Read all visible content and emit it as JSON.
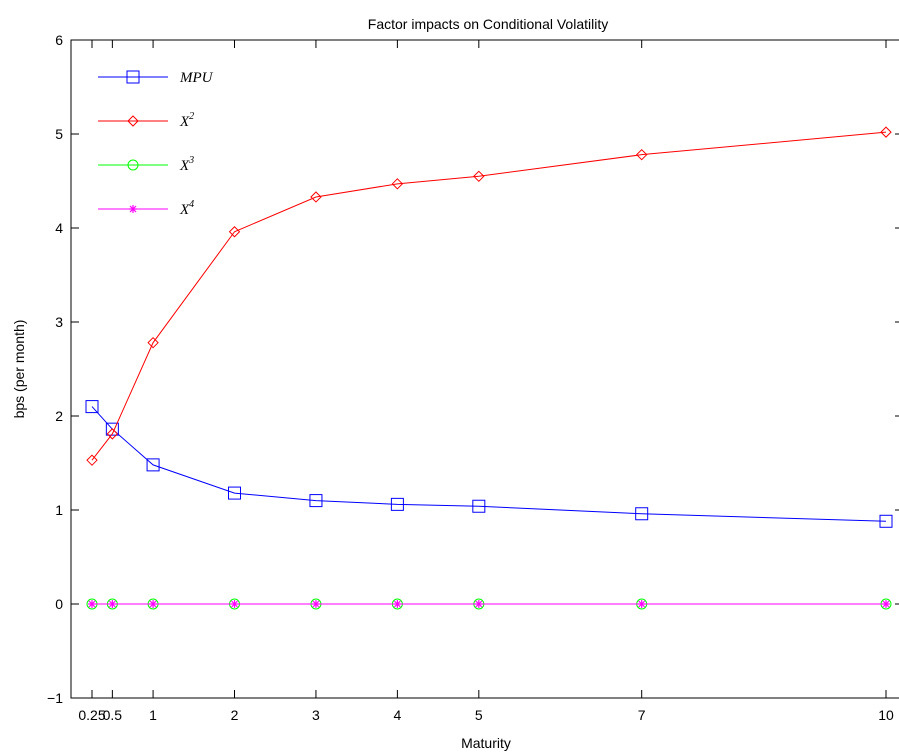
{
  "chart_data": {
    "type": "line",
    "title": "Factor impacts on Conditional Volatility",
    "xlabel": "Maturity",
    "ylabel": "bps (per month)",
    "xlim": [
      0.25,
      10
    ],
    "ylim": [
      -1,
      6
    ],
    "x": [
      0.25,
      0.5,
      1,
      2,
      3,
      4,
      5,
      7,
      10
    ],
    "x_tick_labels": [
      "0.25",
      "0.5",
      "1",
      "2",
      "3",
      "4",
      "5",
      "7",
      "10"
    ],
    "y_ticks": [
      -1,
      0,
      1,
      2,
      3,
      4,
      5,
      6
    ],
    "y_tick_labels": [
      "−1",
      "0",
      "1",
      "2",
      "3",
      "4",
      "5",
      "6"
    ],
    "legend_position": "top-left",
    "grid": false,
    "series": [
      {
        "name": "MPU",
        "label_main": "MPU",
        "label_sup": "",
        "color": "#0000ff",
        "marker": "square",
        "values": [
          2.1,
          1.86,
          1.48,
          1.18,
          1.1,
          1.06,
          1.04,
          0.96,
          0.88
        ]
      },
      {
        "name": "X^2",
        "label_main": "X",
        "label_sup": "2",
        "color": "#ff0000",
        "marker": "diamond",
        "values": [
          1.53,
          1.81,
          2.78,
          3.96,
          4.33,
          4.47,
          4.55,
          4.78,
          5.02
        ]
      },
      {
        "name": "X^3",
        "label_main": "X",
        "label_sup": "3",
        "color": "#00ff00",
        "marker": "circle",
        "values": [
          0,
          0,
          0,
          0,
          0,
          0,
          0,
          0,
          0
        ]
      },
      {
        "name": "X^4",
        "label_main": "X",
        "label_sup": "4",
        "color": "#ff00ff",
        "marker": "star",
        "values": [
          0,
          0,
          0,
          0,
          0,
          0,
          0,
          0,
          0
        ]
      }
    ]
  }
}
